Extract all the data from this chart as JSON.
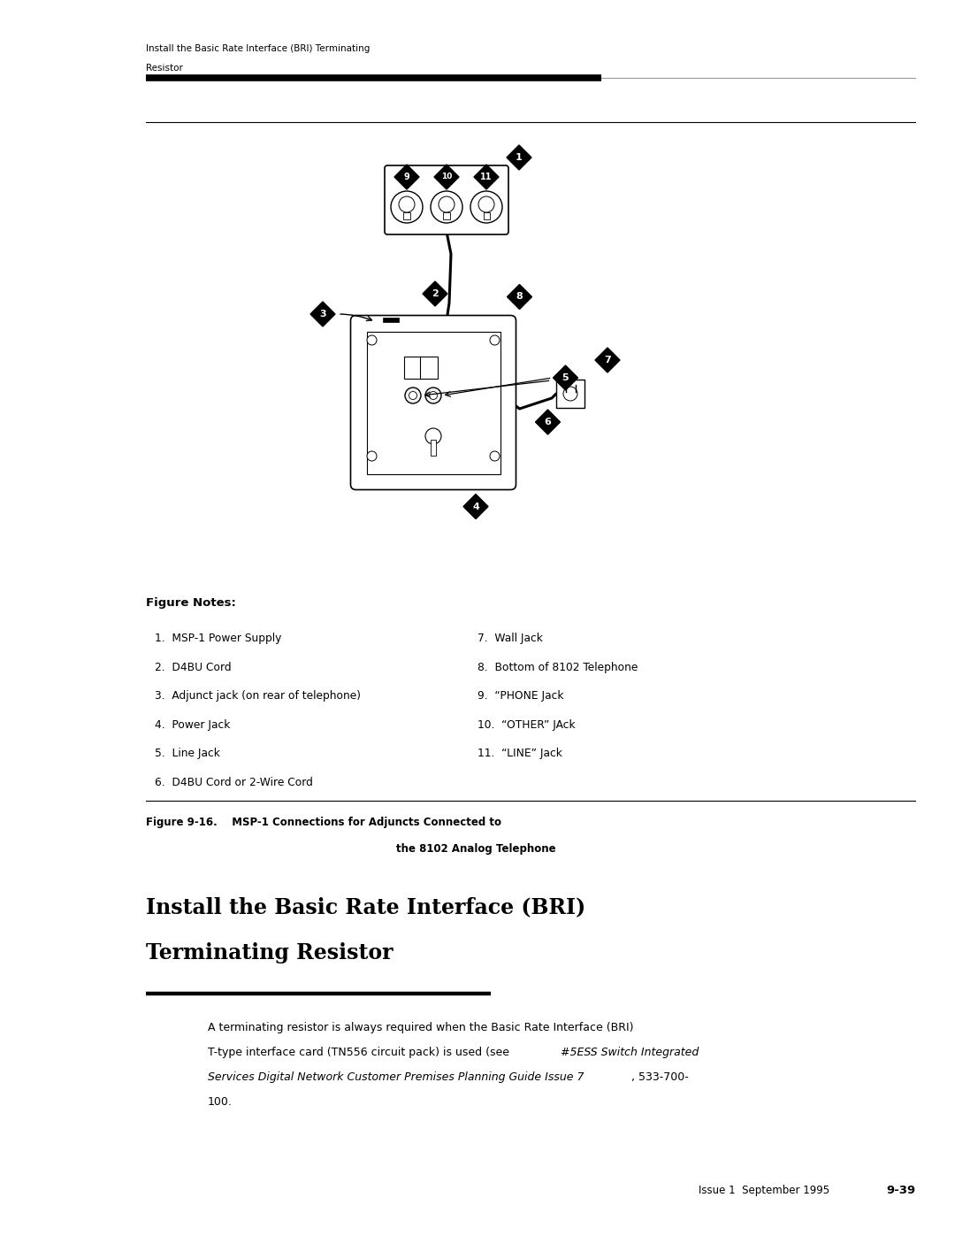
{
  "page_width": 10.8,
  "page_height": 13.97,
  "bg_color": "#ffffff",
  "header_line1": "Install the Basic Rate Interface (BRI) Terminating",
  "header_line2": "Resistor",
  "figure_notes_label": "Figure Notes:",
  "notes_col1": [
    "1.  MSP-1 Power Supply",
    "2.  D4BU Cord",
    "3.  Adjunct jack (on rear of telephone)",
    "4.  Power Jack",
    "5.  Line Jack",
    "6.  D4BU Cord or 2-Wire Cord"
  ],
  "notes_col2": [
    "7.  Wall Jack",
    "8.  Bottom of 8102 Telephone",
    "9.  “PHONE Jack",
    "10.  “OTHER” JAck",
    "11.  “LINE” Jack"
  ],
  "fig_cap1": "Figure 9-16.    MSP-1 Connections for Adjuncts Connected to",
  "fig_cap2": "the 8102 Analog Telephone",
  "sec_title1": "Install the Basic Rate Interface (BRI)",
  "sec_title2": "Terminating Resistor",
  "body_pre_italic": "A terminating resistor is always required when the Basic Rate Interface (BRI)\nT-type interface card (TN556 circuit pack) is used (see ",
  "body_italic": "#5ESS Switch Integrated\nServices Digital Network Customer Premises Planning Guide Issue 7",
  "body_post_italic": ", 533-700-\n100.",
  "footer_left": "Issue 1  September 1995",
  "footer_right": "9-39",
  "diamond_color": "#000000",
  "diamond_text_color": "#ffffff"
}
